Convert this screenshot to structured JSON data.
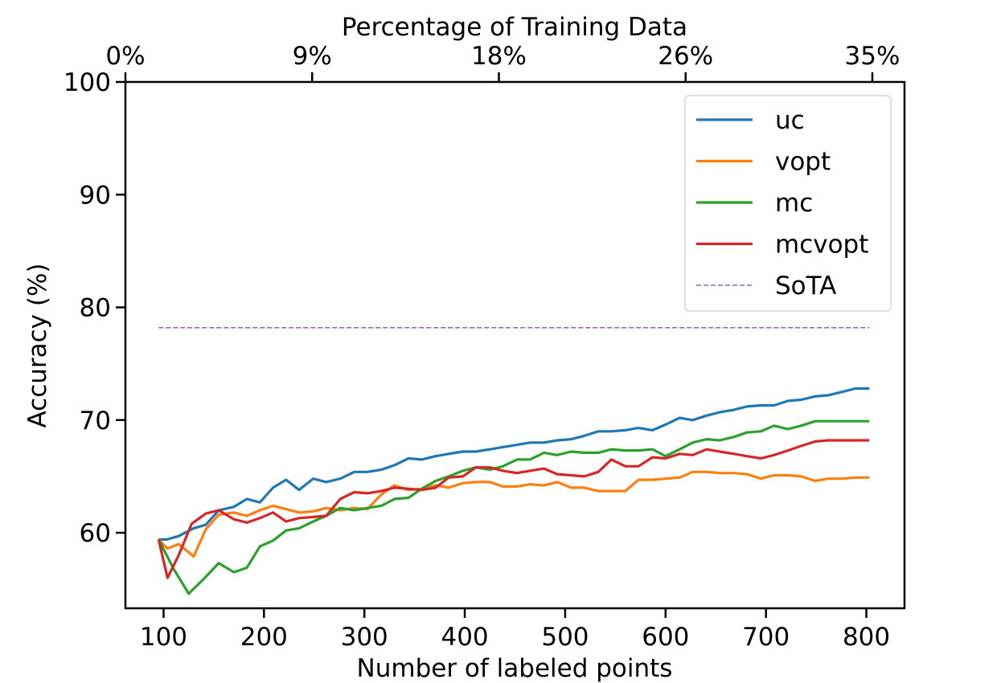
{
  "chart_data": {
    "type": "line",
    "title": "",
    "xlabel": "Number of labeled points",
    "ylabel": "Accuracy (%)",
    "top_xlabel": "Percentage of Training Data",
    "xlim": [
      62,
      838
    ],
    "ylim": [
      53.3,
      100
    ],
    "x_ticks": [
      100,
      200,
      300,
      400,
      500,
      600,
      700,
      800
    ],
    "x_tick_labels": [
      "100",
      "200",
      "300",
      "400",
      "500",
      "600",
      "700",
      "800"
    ],
    "y_ticks": [
      60,
      70,
      80,
      90,
      100
    ],
    "y_tick_labels": [
      "60",
      "70",
      "80",
      "90",
      "100"
    ],
    "top_ticks": [
      0,
      93,
      186,
      279,
      372
    ],
    "top_tick_labels": [
      "0%",
      "9%",
      "18%",
      "26%",
      "35%"
    ],
    "grid": false,
    "legend_position": "top-right",
    "x": [
      95,
      109,
      123,
      137,
      151,
      165,
      179,
      193,
      207,
      221,
      235,
      249,
      263,
      277,
      291,
      305,
      319,
      333,
      347,
      361,
      375,
      389,
      403,
      417,
      431,
      445,
      459,
      473,
      487,
      501,
      515,
      529,
      543,
      557,
      571,
      585,
      599,
      613,
      627,
      641,
      655,
      669,
      683,
      697,
      711,
      725,
      739,
      753,
      767,
      781,
      795,
      803
    ],
    "series": [
      {
        "name": "uc",
        "color": "#1f77b4",
        "dashed": false,
        "x": [
          95,
          103,
          115,
          130,
          142,
          155,
          170,
          183,
          196,
          209,
          222,
          235,
          249,
          262,
          276,
          290,
          303,
          317,
          330,
          344,
          357,
          371,
          384,
          398,
          411,
          425,
          438,
          452,
          465,
          479,
          492,
          506,
          519,
          533,
          546,
          560,
          573,
          587,
          600,
          614,
          627,
          641,
          654,
          668,
          681,
          695,
          708,
          722,
          735,
          749,
          762,
          776,
          789,
          803
        ],
        "values": [
          59.4,
          59.4,
          59.7,
          60.4,
          60.7,
          62.0,
          62.3,
          63.0,
          62.7,
          64.0,
          64.7,
          63.8,
          64.8,
          64.5,
          64.8,
          65.4,
          65.4,
          65.6,
          66.0,
          66.6,
          66.5,
          66.8,
          67.0,
          67.2,
          67.2,
          67.4,
          67.6,
          67.8,
          68.0,
          68.0,
          68.2,
          68.3,
          68.6,
          69.0,
          69.0,
          69.1,
          69.3,
          69.1,
          69.6,
          70.2,
          70.0,
          70.4,
          70.7,
          70.9,
          71.2,
          71.3,
          71.3,
          71.7,
          71.8,
          72.1,
          72.2,
          72.5,
          72.8,
          72.8
        ]
      },
      {
        "name": "vopt",
        "color": "#ff7f0e",
        "dashed": false,
        "x": [
          95,
          104,
          115,
          130,
          142,
          155,
          170,
          183,
          196,
          209,
          222,
          235,
          249,
          262,
          276,
          290,
          303,
          317,
          330,
          344,
          357,
          371,
          384,
          398,
          411,
          425,
          438,
          452,
          465,
          479,
          492,
          506,
          519,
          533,
          546,
          560,
          573,
          587,
          600,
          614,
          627,
          641,
          654,
          668,
          681,
          695,
          708,
          722,
          735,
          749,
          762,
          776,
          789,
          803
        ],
        "values": [
          59.4,
          58.6,
          59.0,
          57.9,
          60.3,
          61.6,
          61.8,
          61.5,
          62.0,
          62.4,
          62.1,
          61.8,
          61.9,
          62.2,
          62.0,
          62.2,
          62.1,
          63.4,
          64.2,
          63.8,
          63.9,
          64.2,
          64.0,
          64.4,
          64.5,
          64.5,
          64.1,
          64.1,
          64.3,
          64.2,
          64.5,
          64.0,
          64.0,
          63.7,
          63.7,
          63.7,
          64.7,
          64.7,
          64.8,
          64.9,
          65.4,
          65.4,
          65.3,
          65.3,
          65.2,
          64.8,
          65.1,
          65.1,
          65.0,
          64.6,
          64.8,
          64.8,
          64.9,
          64.9
        ],
        "trim": 0
      },
      {
        "name": "mc",
        "color": "#2ca02c",
        "dashed": false,
        "x": [
          95,
          110,
          125,
          140,
          155,
          170,
          183,
          196,
          209,
          222,
          235,
          249,
          262,
          276,
          290,
          303,
          317,
          330,
          344,
          357,
          371,
          384,
          398,
          411,
          425,
          438,
          452,
          465,
          479,
          492,
          506,
          519,
          533,
          546,
          560,
          573,
          587,
          600,
          614,
          627,
          641,
          654,
          668,
          681,
          695,
          708,
          722,
          735,
          749,
          762,
          776,
          789,
          803
        ],
        "values": [
          59.4,
          56.8,
          54.6,
          55.9,
          57.3,
          56.5,
          56.9,
          58.8,
          59.3,
          60.2,
          60.4,
          61.0,
          61.5,
          62.2,
          62.0,
          62.2,
          62.4,
          63.0,
          63.1,
          63.9,
          64.6,
          65.0,
          65.5,
          65.8,
          65.6,
          65.9,
          66.5,
          66.5,
          67.1,
          66.9,
          67.2,
          67.1,
          67.1,
          67.4,
          67.3,
          67.3,
          67.4,
          66.8,
          67.4,
          68.0,
          68.3,
          68.2,
          68.5,
          68.9,
          69.0,
          69.5,
          69.2,
          69.5,
          69.9,
          69.9,
          69.9,
          69.9,
          69.9
        ]
      },
      {
        "name": "mcvopt",
        "color": "#d62728",
        "dashed": false,
        "x": [
          95,
          104,
          115,
          128,
          142,
          155,
          170,
          183,
          196,
          209,
          222,
          235,
          249,
          262,
          276,
          290,
          303,
          317,
          330,
          344,
          357,
          371,
          384,
          398,
          411,
          425,
          438,
          452,
          465,
          479,
          492,
          506,
          519,
          533,
          546,
          560,
          573,
          587,
          600,
          614,
          627,
          641,
          654,
          668,
          681,
          695,
          708,
          722,
          735,
          749,
          762,
          776,
          789,
          803
        ],
        "values": [
          59.4,
          56.0,
          58.0,
          60.8,
          61.7,
          62.0,
          61.2,
          60.9,
          61.3,
          61.8,
          61.0,
          61.3,
          61.4,
          61.5,
          63.0,
          63.6,
          63.5,
          63.7,
          64.0,
          63.9,
          63.8,
          64.0,
          64.9,
          65.0,
          65.8,
          65.8,
          65.5,
          65.3,
          65.5,
          65.7,
          65.2,
          65.1,
          65.0,
          65.4,
          66.5,
          65.9,
          65.9,
          66.7,
          66.6,
          67.0,
          66.9,
          67.4,
          67.2,
          67.0,
          66.8,
          66.6,
          66.9,
          67.3,
          67.7,
          68.1,
          68.2,
          68.2,
          68.2,
          68.2
        ]
      },
      {
        "name": "SoTA",
        "color": "#9467bd",
        "dashed": true,
        "x": [
          95,
          803
        ],
        "values": [
          78.2,
          78.2
        ]
      }
    ]
  }
}
